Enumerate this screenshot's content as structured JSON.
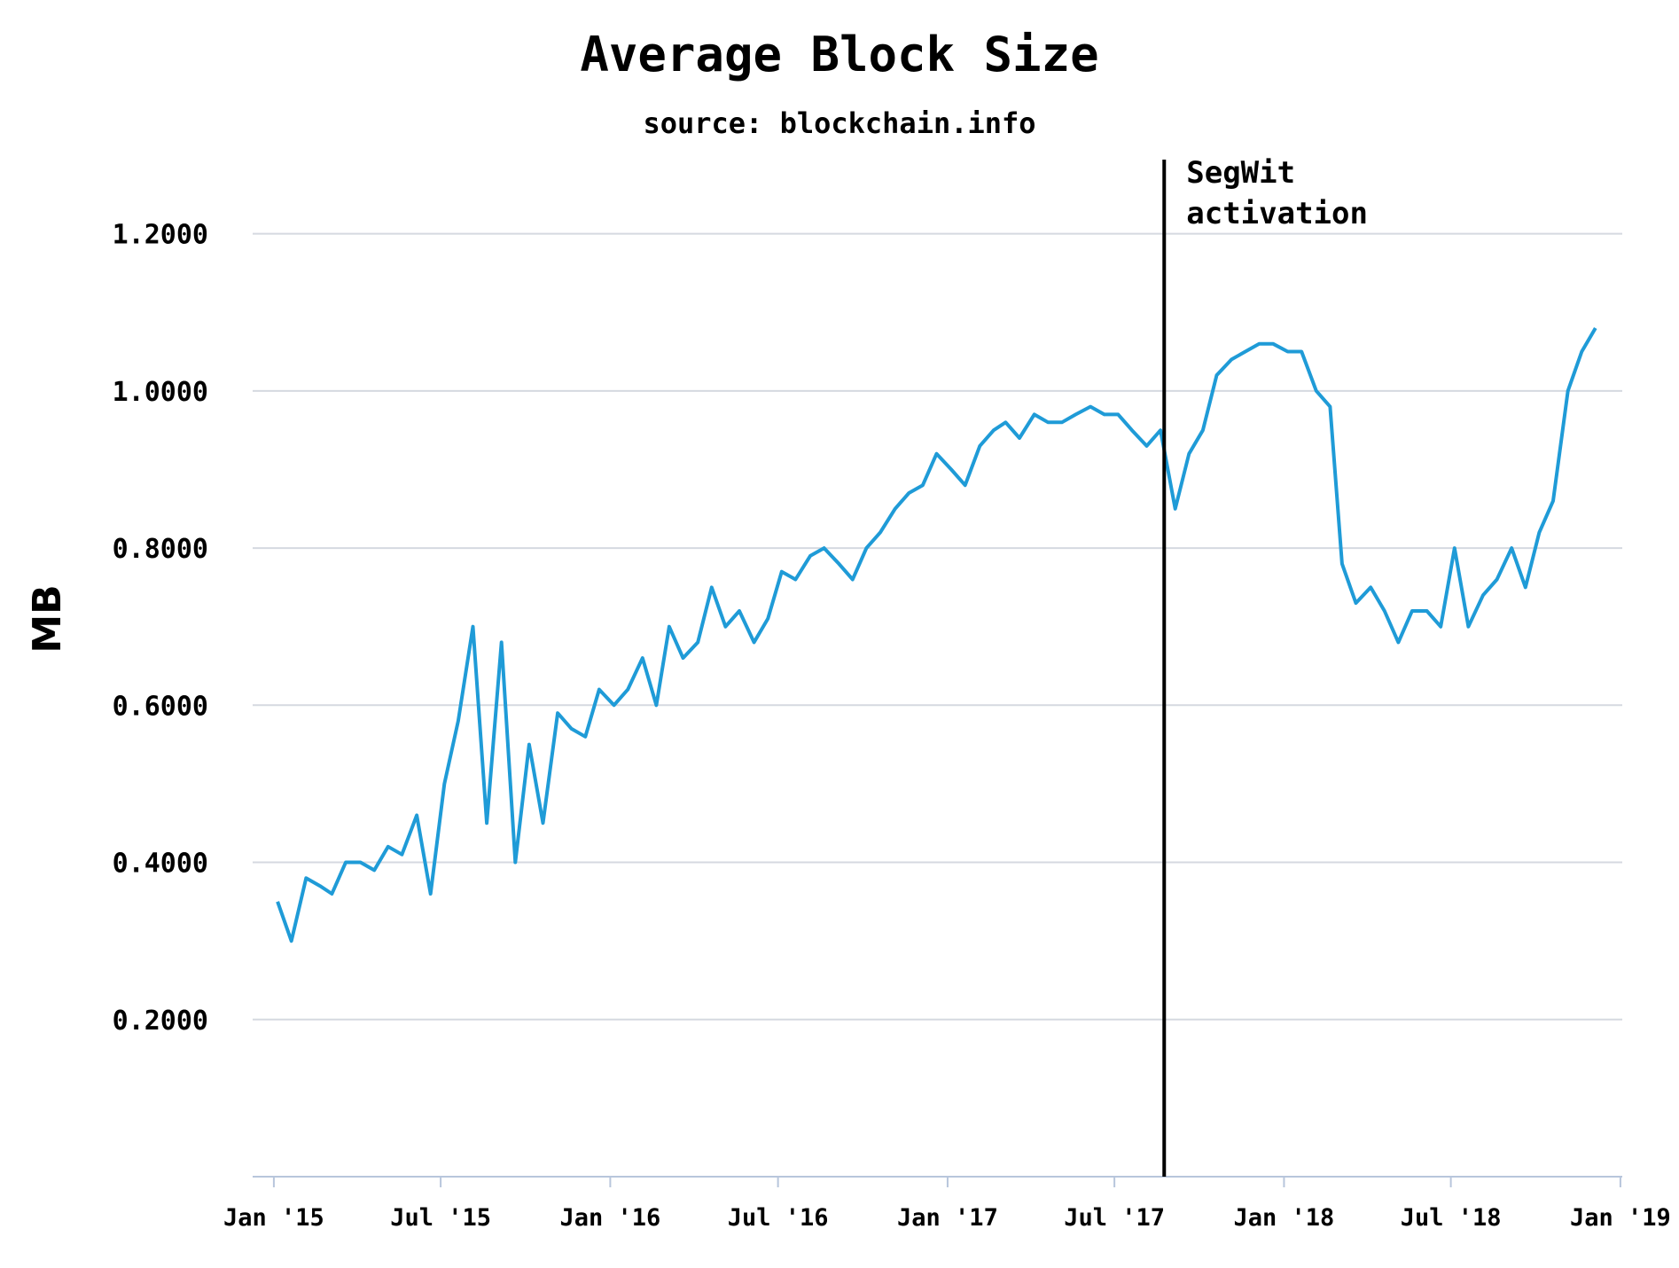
{
  "chart_data": {
    "type": "line",
    "title": "Average Block Size",
    "subtitle": "source: blockchain.info",
    "ylabel": "MB",
    "xlabel": "",
    "xlim": [
      "2014-12-09",
      "2019-01-03"
    ],
    "ylim": [
      0,
      1.3
    ],
    "y_ticks": [
      0.2,
      0.4,
      0.6,
      0.8,
      1.0,
      1.2
    ],
    "y_tick_labels": [
      "0.2000",
      "0.4000",
      "0.6000",
      "0.8000",
      "1.0000",
      "1.2000"
    ],
    "x_ticks": [
      "2015-01-01",
      "2015-07-01",
      "2016-01-01",
      "2016-07-01",
      "2017-01-01",
      "2017-07-01",
      "2018-01-01",
      "2018-07-01",
      "2019-01-01"
    ],
    "x_tick_labels": [
      "Jan '15",
      "Jul '15",
      "Jan '16",
      "Jul '16",
      "Jan '17",
      "Jul '17",
      "Jan '18",
      "Jul '18",
      "Jan '19"
    ],
    "grid": true,
    "legend": "none",
    "annotations": [
      {
        "type": "vline",
        "x": "2017-08-24",
        "lines": [
          "SegWit",
          "activation"
        ]
      }
    ],
    "series": [
      {
        "color": "#1f9bd7",
        "x": [
          "2015-01-05",
          "2015-01-20",
          "2015-02-05",
          "2015-02-20",
          "2015-03-05",
          "2015-03-20",
          "2015-04-05",
          "2015-04-20",
          "2015-05-05",
          "2015-05-20",
          "2015-06-05",
          "2015-06-20",
          "2015-07-05",
          "2015-07-20",
          "2015-08-05",
          "2015-08-20",
          "2015-09-05",
          "2015-09-20",
          "2015-10-05",
          "2015-10-20",
          "2015-11-05",
          "2015-11-20",
          "2015-12-05",
          "2015-12-20",
          "2016-01-05",
          "2016-01-20",
          "2016-02-05",
          "2016-02-20",
          "2016-03-05",
          "2016-03-20",
          "2016-04-05",
          "2016-04-20",
          "2016-05-05",
          "2016-05-20",
          "2016-06-05",
          "2016-06-20",
          "2016-07-05",
          "2016-07-20",
          "2016-08-05",
          "2016-08-20",
          "2016-09-05",
          "2016-09-20",
          "2016-10-05",
          "2016-10-20",
          "2016-11-05",
          "2016-11-20",
          "2016-12-05",
          "2016-12-20",
          "2017-01-05",
          "2017-01-20",
          "2017-02-05",
          "2017-02-20",
          "2017-03-05",
          "2017-03-20",
          "2017-04-05",
          "2017-04-20",
          "2017-05-05",
          "2017-05-20",
          "2017-06-05",
          "2017-06-20",
          "2017-07-05",
          "2017-07-20",
          "2017-08-05",
          "2017-08-20",
          "2017-09-05",
          "2017-09-20",
          "2017-10-05",
          "2017-10-20",
          "2017-11-05",
          "2017-11-20",
          "2017-12-05",
          "2017-12-20",
          "2018-01-05",
          "2018-01-20",
          "2018-02-05",
          "2018-02-20",
          "2018-03-05",
          "2018-03-20",
          "2018-04-05",
          "2018-04-20",
          "2018-05-05",
          "2018-05-20",
          "2018-06-05",
          "2018-06-20",
          "2018-07-05",
          "2018-07-20",
          "2018-08-05",
          "2018-08-20",
          "2018-09-05",
          "2018-09-20",
          "2018-10-05",
          "2018-10-20",
          "2018-11-05",
          "2018-11-20",
          "2018-12-05"
        ],
        "y": [
          0.35,
          0.3,
          0.38,
          0.37,
          0.36,
          0.4,
          0.4,
          0.39,
          0.42,
          0.41,
          0.46,
          0.36,
          0.5,
          0.58,
          0.7,
          0.45,
          0.68,
          0.4,
          0.55,
          0.45,
          0.59,
          0.57,
          0.56,
          0.62,
          0.6,
          0.62,
          0.66,
          0.6,
          0.7,
          0.66,
          0.68,
          0.75,
          0.7,
          0.72,
          0.68,
          0.71,
          0.77,
          0.76,
          0.79,
          0.8,
          0.78,
          0.76,
          0.8,
          0.82,
          0.85,
          0.87,
          0.88,
          0.92,
          0.9,
          0.88,
          0.93,
          0.95,
          0.96,
          0.94,
          0.97,
          0.96,
          0.96,
          0.97,
          0.98,
          0.97,
          0.97,
          0.95,
          0.93,
          0.95,
          0.85,
          0.92,
          0.95,
          1.02,
          1.04,
          1.05,
          1.06,
          1.06,
          1.05,
          1.05,
          1.0,
          0.98,
          0.78,
          0.73,
          0.75,
          0.72,
          0.68,
          0.72,
          0.72,
          0.7,
          0.8,
          0.7,
          0.74,
          0.76,
          0.8,
          0.75,
          0.82,
          0.86,
          1.0,
          1.05,
          1.08
        ]
      }
    ]
  }
}
